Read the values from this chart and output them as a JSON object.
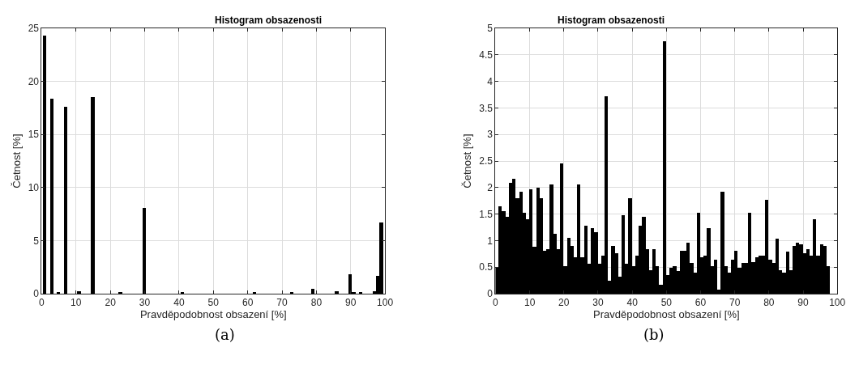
{
  "chart_data": [
    {
      "type": "histogram",
      "title": "Histogram obsazenosti",
      "xlabel": "Pravděpodobnost obsazení [%]",
      "ylabel": "Četnost [%]",
      "color": "#000000",
      "bins": [
        0.5,
        1.5,
        2.5,
        3.5,
        4.5,
        5.5,
        6.5,
        7.5,
        8.5,
        9.5,
        10.5,
        11.5,
        12.5,
        13.5,
        14.5,
        15.5,
        16.5,
        17.5,
        18.5,
        19.5,
        20.5,
        21.5,
        22.5,
        23.5,
        24.5,
        25.5,
        26.5,
        27.5,
        28.5,
        29.5,
        30.5,
        31.5,
        32.5,
        33.5,
        34.5,
        35.5,
        36.5,
        37.5,
        38.5,
        39.5,
        40.5,
        41.5,
        42.5,
        43.5,
        44.5,
        45.5,
        46.5,
        47.5,
        48.5,
        49.5,
        50.5,
        51.5,
        52.5,
        53.5,
        54.5,
        55.5,
        56.5,
        57.5,
        58.5,
        59.5,
        60.5,
        61.5,
        62.5,
        63.5,
        64.5,
        65.5,
        66.5,
        67.5,
        68.5,
        69.5,
        70.5,
        71.5,
        72.5,
        73.5,
        74.5,
        75.5,
        76.5,
        77.5,
        78.5,
        79.5,
        80.5,
        81.5,
        82.5,
        83.5,
        84.5,
        85.5,
        86.5,
        87.5,
        88.5,
        89.5,
        90.5,
        91.5,
        92.5,
        93.5,
        94.5,
        95.5,
        96.5,
        97.5,
        98.5,
        99.5
      ],
      "values": [
        24.3,
        0,
        18.4,
        0,
        0.07,
        0,
        17.6,
        0,
        0,
        0,
        0.25,
        0,
        0,
        0,
        18.5,
        0,
        0,
        0,
        0,
        0,
        0,
        0,
        0.1,
        0,
        0,
        0,
        0,
        0,
        0,
        8.1,
        0,
        0,
        0,
        0,
        0,
        0,
        0,
        0,
        0,
        0,
        0.1,
        0,
        0,
        0,
        0,
        0,
        0,
        0,
        0,
        0,
        0,
        0,
        0,
        0,
        0,
        0,
        0,
        0,
        0,
        0,
        0,
        0.08,
        0,
        0,
        0,
        0,
        0,
        0,
        0,
        0,
        0,
        0,
        0.07,
        0,
        0,
        0,
        0,
        0,
        0.45,
        0,
        0,
        0,
        0,
        0,
        0,
        0.2,
        0,
        0,
        0,
        1.82,
        0.07,
        0,
        0.07,
        0,
        0,
        0,
        0.2,
        1.65,
        6.7
      ],
      "xlim": [
        0,
        100
      ],
      "xticks": [
        0,
        10,
        20,
        30,
        40,
        50,
        60,
        70,
        80,
        90,
        100
      ],
      "ylim": [
        0,
        25
      ],
      "yticks": [
        0,
        5,
        10,
        15,
        20,
        25
      ],
      "grid": true,
      "annotations": [
        "(a)"
      ]
    },
    {
      "type": "histogram",
      "title": "Histogram obsazenosti",
      "xlabel": "Pravděpodobnost obsazení [%]",
      "ylabel": "Četnost [%]",
      "color": "#000000",
      "bins": [
        0,
        1,
        2,
        3,
        4,
        5,
        6,
        7,
        8,
        9,
        10,
        11,
        12,
        13,
        14,
        15,
        16,
        17,
        18,
        19,
        20,
        21,
        22,
        23,
        24,
        25,
        26,
        27,
        28,
        29,
        30,
        31,
        32,
        33,
        34,
        35,
        36,
        37,
        38,
        39,
        40,
        41,
        42,
        43,
        44,
        45,
        46,
        47,
        48,
        49,
        50,
        51,
        52,
        53,
        54,
        55,
        56,
        57,
        58,
        59,
        60,
        61,
        62,
        63,
        64,
        65,
        66,
        67,
        68,
        69,
        70,
        71,
        72,
        73,
        74,
        75,
        76,
        77,
        78,
        79,
        80,
        81,
        82,
        83,
        84,
        85,
        86,
        87,
        88,
        89,
        90,
        91,
        92,
        93,
        94,
        95,
        96,
        97,
        98
      ],
      "values": [
        0.49,
        1.64,
        1.56,
        1.44,
        2.08,
        2.16,
        1.8,
        1.92,
        1.52,
        1.4,
        1.96,
        0.88,
        2.0,
        1.8,
        0.8,
        0.84,
        2.05,
        1.13,
        0.84,
        2.45,
        0.52,
        1.05,
        0.89,
        0.68,
        2.05,
        0.68,
        1.28,
        0.56,
        1.24,
        1.16,
        0.56,
        0.72,
        3.72,
        0.24,
        0.89,
        0.76,
        0.32,
        1.48,
        0.56,
        1.8,
        0.52,
        0.71,
        1.28,
        1.44,
        0.84,
        0.44,
        0.84,
        0.52,
        0.16,
        4.75,
        0.35,
        0.49,
        0.52,
        0.43,
        0.8,
        0.8,
        0.96,
        0.57,
        0.39,
        1.52,
        0.69,
        0.71,
        1.24,
        0.52,
        0.64,
        0.07,
        1.92,
        0.52,
        0.39,
        0.64,
        0.8,
        0.48,
        0.57,
        0.57,
        1.52,
        0.6,
        0.69,
        0.71,
        0.71,
        1.77,
        0.64,
        0.57,
        1.04,
        0.44,
        0.39,
        0.79,
        0.44,
        0.89,
        0.96,
        0.93,
        0.76,
        0.84,
        0.71,
        1.4,
        0.71,
        0.93,
        0.89,
        0.51
      ],
      "xlim": [
        0,
        100
      ],
      "xticks": [
        0,
        10,
        20,
        30,
        40,
        50,
        60,
        70,
        80,
        90,
        100
      ],
      "ylim": [
        0,
        5
      ],
      "yticks": [
        0,
        0.5,
        1,
        1.5,
        2,
        2.5,
        3,
        3.5,
        4,
        4.5,
        5
      ],
      "grid": true,
      "annotations": [
        "(b)"
      ]
    }
  ]
}
